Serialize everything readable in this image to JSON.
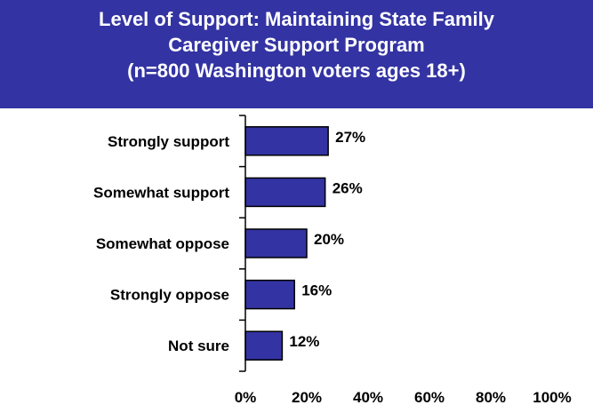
{
  "header": {
    "title_line1": "Level of Support: Maintaining State Family",
    "title_line2": "Caregiver Support Program",
    "title_line3": "(n=800 Washington voters ages 18+)"
  },
  "colors": {
    "header_bg": "#3333a3",
    "bar_fill": "#3333a3",
    "bar_stroke": "#000000"
  },
  "chart_data": {
    "type": "bar",
    "orientation": "horizontal",
    "title": "Level of Support: Maintaining State Family Caregiver Support Program (n=800 Washington voters ages 18+)",
    "categories": [
      "Strongly support",
      "Somewhat support",
      "Somewhat oppose",
      "Strongly oppose",
      "Not sure"
    ],
    "values": [
      27,
      26,
      20,
      16,
      12
    ],
    "value_labels": [
      "27%",
      "26%",
      "20%",
      "16%",
      "12%"
    ],
    "xlim": [
      0,
      100
    ],
    "xticks": [
      0,
      20,
      40,
      60,
      80,
      100
    ],
    "xtick_labels": [
      "0%",
      "20%",
      "40%",
      "60%",
      "80%",
      "100%"
    ],
    "grid": false,
    "legend": "none"
  }
}
